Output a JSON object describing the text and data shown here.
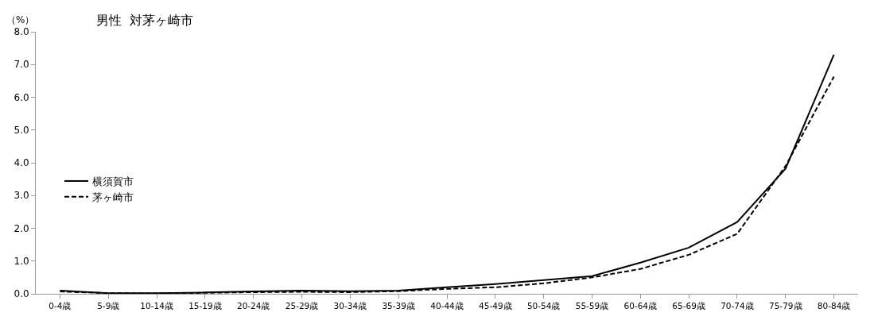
{
  "chart_data": {
    "type": "line",
    "title": "男性  対茅ヶ崎市",
    "ylabel": "（%）",
    "categories": [
      "0-4歳",
      "5-9歳",
      "10-14歳",
      "15-19歳",
      "20-24歳",
      "25-29歳",
      "30-34歳",
      "35-39歳",
      "40-44歳",
      "45-49歳",
      "50-54歳",
      "55-59歳",
      "60-64歳",
      "65-69歳",
      "70-74歳",
      "75-79歳",
      "80-84歳"
    ],
    "series": [
      {
        "name": "横須賀市",
        "color": "#000000",
        "line_style": "solid",
        "values": [
          0.1,
          0.02,
          0.02,
          0.04,
          0.07,
          0.1,
          0.08,
          0.1,
          0.2,
          0.3,
          0.42,
          0.54,
          0.95,
          1.41,
          2.19,
          3.82,
          7.3
        ]
      },
      {
        "name": "茅ヶ崎市",
        "color": "#000000",
        "line_style": "dashed",
        "values": [
          0.07,
          0.02,
          0.01,
          0.03,
          0.05,
          0.06,
          0.05,
          0.08,
          0.15,
          0.2,
          0.32,
          0.5,
          0.76,
          1.19,
          1.83,
          3.9,
          6.63
        ]
      }
    ],
    "ylim": [
      0,
      8
    ],
    "yticks": [
      {
        "value": 0,
        "label": "0.0"
      },
      {
        "value": 1,
        "label": "1.0"
      },
      {
        "value": 2,
        "label": "2.0"
      },
      {
        "value": 3,
        "label": "3.0"
      },
      {
        "value": 4,
        "label": "4.0"
      },
      {
        "value": 5,
        "label": "5.0"
      },
      {
        "value": 6,
        "label": "6.0"
      },
      {
        "value": 7,
        "label": "7.0"
      },
      {
        "value": 8,
        "label": "8.0"
      }
    ],
    "legend": "left",
    "marker": "none"
  }
}
